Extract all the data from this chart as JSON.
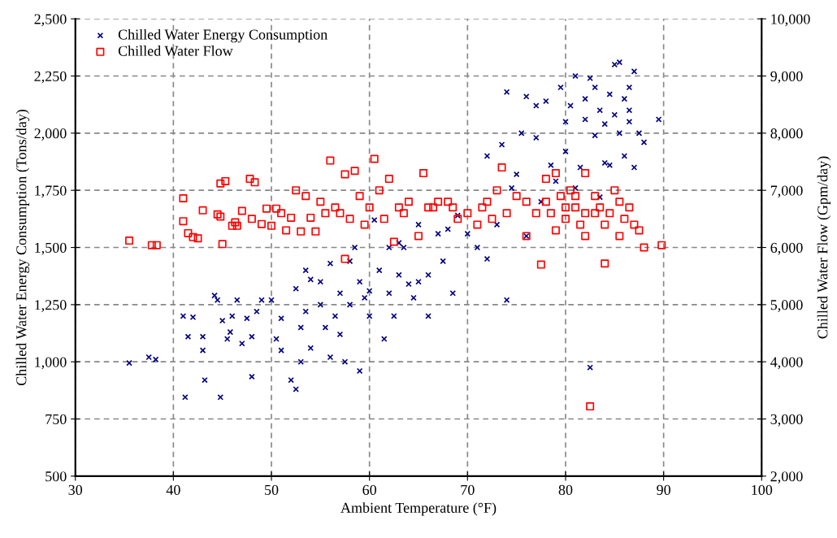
{
  "chart_data": {
    "type": "scatter",
    "xlabel": "Ambient Temperature (°F)",
    "ylabel": "Chilled Water Energy Consumption (Tons/day)",
    "y2label": "Chilled Water Flow (Gpm/day)",
    "xlim": [
      30,
      100
    ],
    "xticks": [
      30,
      40,
      50,
      60,
      70,
      80,
      90,
      100
    ],
    "ylim": [
      500,
      2500
    ],
    "yticks": [
      {
        "value": 500,
        "label": "500"
      },
      {
        "value": 750,
        "label": "750"
      },
      {
        "value": 1000,
        "label": "1,000"
      },
      {
        "value": 1250,
        "label": "1,250"
      },
      {
        "value": 1500,
        "label": "1,500"
      },
      {
        "value": 1750,
        "label": "1,750"
      },
      {
        "value": 2000,
        "label": "2,000"
      },
      {
        "value": 2250,
        "label": "2,250"
      },
      {
        "value": 2500,
        "label": "2,500"
      }
    ],
    "y2lim": [
      2000,
      10000
    ],
    "y2ticks": [
      {
        "value": 2000,
        "label": "2,000"
      },
      {
        "value": 3000,
        "label": "3,000"
      },
      {
        "value": 4000,
        "label": "4,000"
      },
      {
        "value": 5000,
        "label": "5,000"
      },
      {
        "value": 6000,
        "label": "6,000"
      },
      {
        "value": 7000,
        "label": "7,000"
      },
      {
        "value": 8000,
        "label": "8,000"
      },
      {
        "value": 9000,
        "label": "9,000"
      },
      {
        "value": 10000,
        "label": "10,000"
      }
    ],
    "grid": true,
    "legend": "top left",
    "series": [
      {
        "name": "Chilled Water Energy Consumption",
        "color": "#000080",
        "marker": "cross",
        "axis": "y",
        "x": [
          35.5,
          37.5,
          38.2,
          41,
          41.5,
          41.2,
          42,
          43,
          43,
          43.2,
          44.2,
          44.5,
          45,
          44.8,
          45.5,
          45.8,
          46,
          46.5,
          47,
          47.5,
          48,
          48,
          48.5,
          49,
          50,
          50.5,
          51,
          51,
          52,
          52.5,
          52.5,
          53,
          53,
          53.5,
          53.5,
          54,
          54,
          55,
          55,
          55.5,
          56,
          56,
          56.5,
          57,
          57,
          57.5,
          58,
          58,
          58.5,
          59,
          59,
          59.5,
          60,
          60,
          60.5,
          61,
          61.5,
          62,
          62,
          62.5,
          63,
          63,
          63.5,
          64,
          64.5,
          65,
          65,
          66,
          66,
          67,
          67.5,
          68,
          68.5,
          69,
          70,
          71,
          72,
          72,
          73,
          73.5,
          74,
          74,
          74.5,
          75,
          75.5,
          76,
          76,
          77,
          77,
          77.5,
          78,
          78.5,
          79,
          79.5,
          80,
          80,
          80.5,
          81,
          81,
          81.5,
          82,
          82,
          82.5,
          82.5,
          83,
          83,
          83.5,
          84,
          84,
          84.5,
          85,
          85,
          85.5,
          86,
          86,
          86.5,
          87,
          87,
          87.5,
          88,
          89.5,
          84.5,
          83.5,
          85.5,
          86.5,
          86.5
        ],
        "values": [
          995,
          1020,
          1010,
          1200,
          1110,
          845,
          1195,
          1110,
          1050,
          920,
          1290,
          1270,
          1180,
          845,
          1100,
          1130,
          1200,
          1270,
          1080,
          1190,
          935,
          1110,
          1220,
          1270,
          1270,
          1100,
          1050,
          1190,
          920,
          880,
          1320,
          1000,
          1150,
          1220,
          1400,
          1360,
          1060,
          1250,
          1350,
          1150,
          1020,
          1430,
          1200,
          1120,
          1300,
          1000,
          1440,
          1250,
          1500,
          1350,
          960,
          1280,
          1200,
          1310,
          1620,
          1400,
          1100,
          1300,
          1500,
          1200,
          1380,
          1520,
          1500,
          1340,
          1280,
          1350,
          1600,
          1380,
          1200,
          1560,
          1440,
          1580,
          1300,
          1640,
          1560,
          1500,
          1450,
          1900,
          1600,
          1950,
          1270,
          2180,
          1760,
          1820,
          2000,
          2160,
          1550,
          2120,
          1980,
          1700,
          2140,
          1860,
          1790,
          2200,
          1920,
          2050,
          2120,
          1760,
          2250,
          1850,
          2150,
          2060,
          2240,
          975,
          2200,
          1990,
          2100,
          2040,
          1870,
          2170,
          2080,
          2300,
          2000,
          2150,
          1900,
          2050,
          2270,
          1850,
          2000,
          1960,
          2060,
          1860,
          1720,
          2310,
          2200,
          2100
        ]
      },
      {
        "name": "Chilled Water Flow",
        "color": "#ff0000",
        "marker": "square",
        "axis": "y2",
        "x": [
          35.5,
          37.8,
          38.3,
          41,
          41,
          41.5,
          42,
          42.5,
          43,
          44.5,
          44.8,
          44.8,
          45,
          45.3,
          46,
          46.3,
          46.5,
          47,
          47.8,
          48,
          48.3,
          49,
          49.5,
          50,
          50.5,
          51,
          51.5,
          52,
          52.5,
          53,
          53.5,
          54,
          54.5,
          55,
          55.5,
          56,
          56.5,
          57,
          57.5,
          57.5,
          58,
          58.5,
          59,
          59.5,
          60,
          60.5,
          61,
          61.5,
          62,
          62.5,
          63,
          63.5,
          64,
          65,
          65.5,
          66,
          66.5,
          67,
          68,
          68.5,
          69,
          70,
          71,
          71.5,
          72,
          72.5,
          73,
          73.5,
          74,
          75,
          76,
          76,
          77,
          77.5,
          78,
          78.5,
          79,
          79.5,
          80,
          80.5,
          81,
          81.5,
          82,
          82,
          82.5,
          83,
          83,
          83.5,
          84,
          84,
          84.5,
          85,
          85.5,
          85.5,
          86,
          86.5,
          87,
          87.5,
          88,
          89.8,
          80,
          81,
          82,
          79,
          78
        ],
        "values": [
          6120,
          6040,
          6040,
          6860,
          6460,
          6250,
          6180,
          6160,
          6650,
          6580,
          6540,
          7120,
          6060,
          7160,
          6380,
          6440,
          6380,
          6640,
          7200,
          6500,
          7140,
          6410,
          6680,
          6380,
          6680,
          6600,
          6300,
          6520,
          7000,
          6280,
          6900,
          6520,
          6280,
          6800,
          6600,
          7520,
          6700,
          6600,
          7280,
          5800,
          6500,
          7340,
          6900,
          6400,
          6700,
          7550,
          7000,
          6500,
          7200,
          6100,
          6700,
          6600,
          6800,
          6200,
          7300,
          6700,
          6700,
          6800,
          6800,
          6700,
          6500,
          6600,
          6400,
          6700,
          6800,
          6500,
          7000,
          7400,
          6600,
          6900,
          6800,
          6200,
          6600,
          5700,
          7200,
          6600,
          7300,
          6900,
          6500,
          7000,
          6700,
          6400,
          6200,
          7300,
          3220,
          6600,
          6900,
          6700,
          6400,
          5720,
          6600,
          7000,
          6200,
          6800,
          6500,
          6700,
          6400,
          6300,
          6000,
          6040,
          6700,
          6900,
          6600,
          6300,
          6800
        ]
      }
    ]
  }
}
